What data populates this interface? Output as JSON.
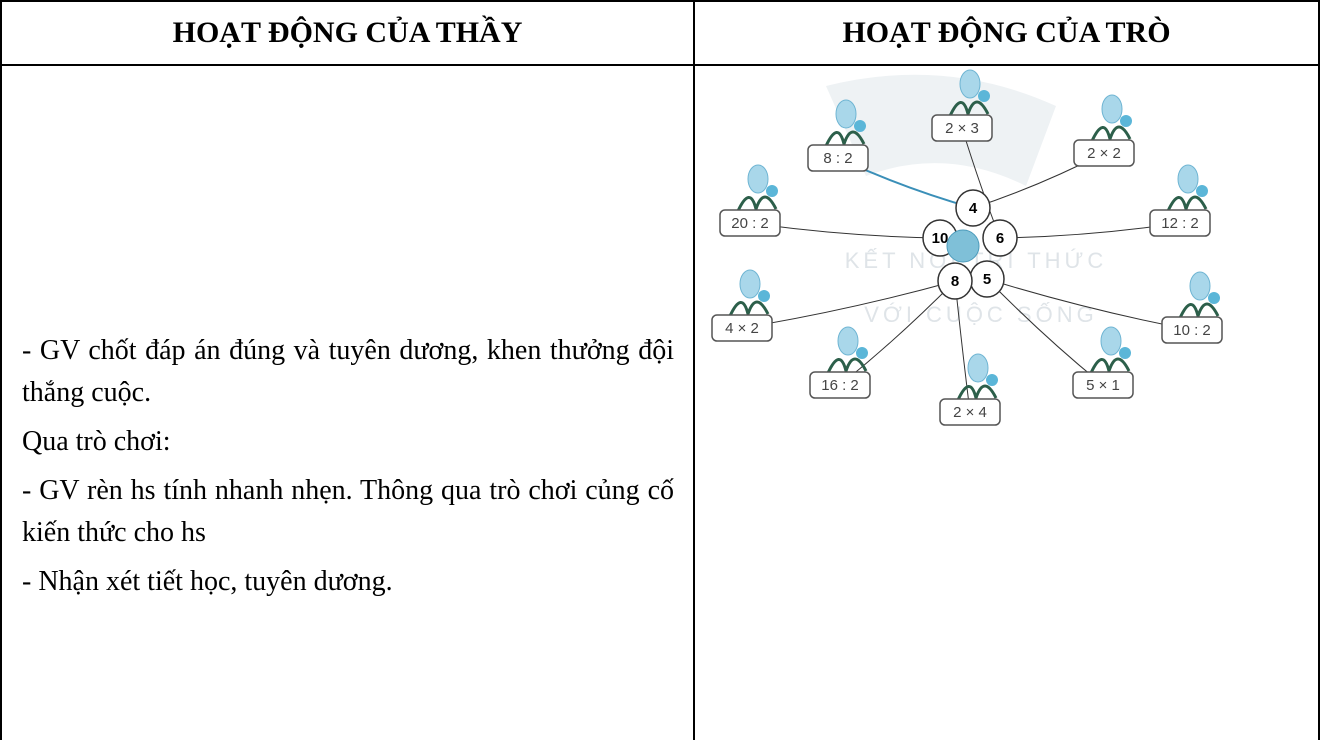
{
  "header": {
    "left": "HOẠT ĐỘNG CỦA THẦY",
    "right": "HOẠT ĐỘNG CỦA TRÒ"
  },
  "left_cell": {
    "paragraphs": [
      "- GV chốt đáp án đúng và tuyên dương, khen thưởng đội thắng cuộc.",
      "Qua trò chơi:",
      "- GV rèn hs tính nhanh nhẹn. Thông qua trò chơi củng cố kiến thức cho hs",
      "- Nhận xét tiết học, tuyên dương."
    ]
  },
  "diagram": {
    "watermark": [
      "KẾT NỐI TRI THỨC",
      "VỚI CUỘC SỐNG"
    ],
    "petals": [
      "4",
      "6",
      "5",
      "8",
      "10"
    ],
    "cards": [
      "8 : 2",
      "2 × 3",
      "2 × 2",
      "20 : 2",
      "12 : 2",
      "4 × 2",
      "10 : 2",
      "16 : 2",
      "5 × 1",
      "2 × 4"
    ]
  }
}
